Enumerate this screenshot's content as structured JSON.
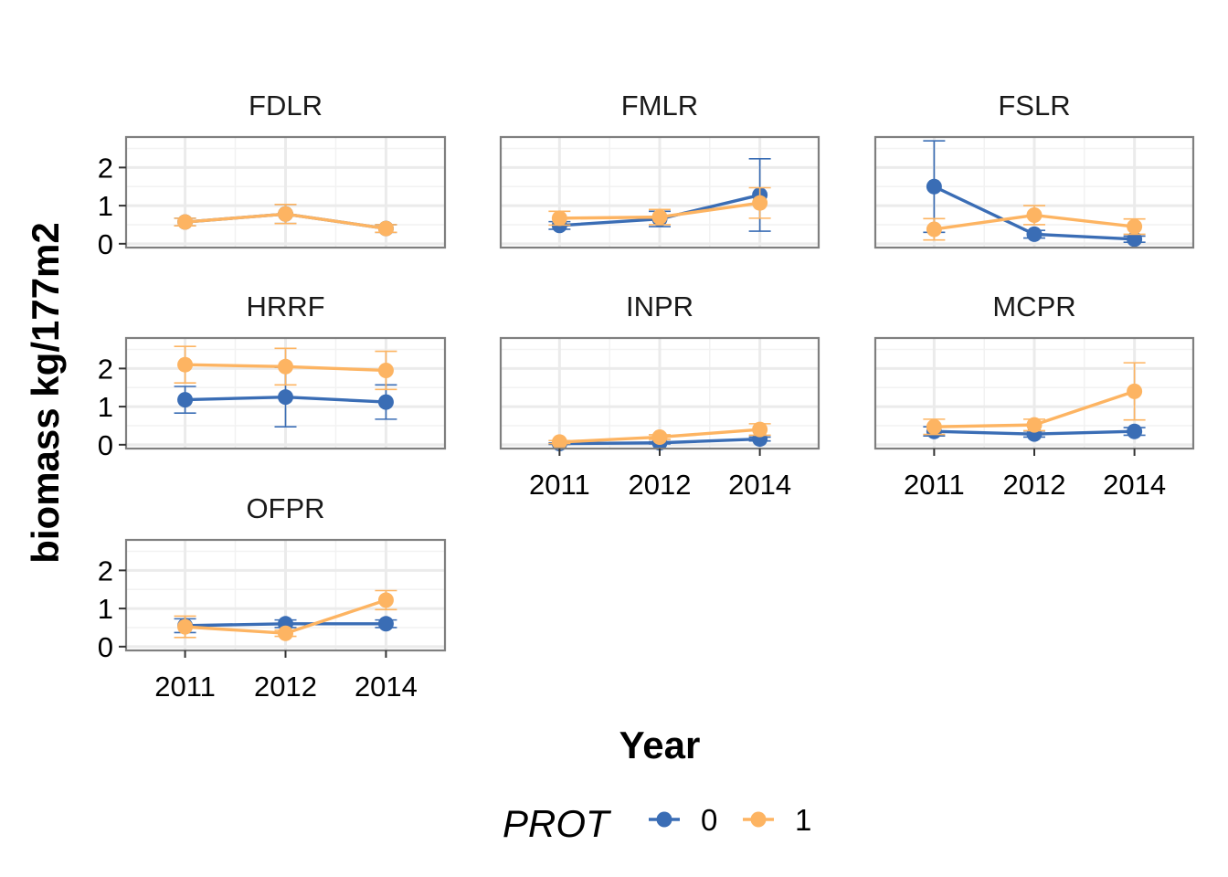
{
  "chart_data": {
    "type": "line",
    "xlabel": "Year",
    "ylabel": "biomass kg/177m2",
    "ylim": [
      -0.1,
      2.8
    ],
    "y_ticks": [
      0,
      1,
      2
    ],
    "x_categories": [
      "2011",
      "2012",
      "2014"
    ],
    "legend": {
      "title": "PROT",
      "placement": "bottom",
      "entries": [
        "0",
        "1"
      ]
    },
    "colors": {
      "0": "#3a6db5",
      "1": "#fdb462"
    },
    "panels": [
      {
        "site": "FDLR",
        "series": [
          {
            "name": "0",
            "values": [
              0.57,
              0.78,
              0.4
            ],
            "err": [
              0.1,
              0.25,
              0.1
            ]
          },
          {
            "name": "1",
            "values": [
              0.57,
              0.78,
              0.4
            ],
            "err": [
              0.1,
              0.25,
              0.1
            ]
          }
        ]
      },
      {
        "site": "FMLR",
        "series": [
          {
            "name": "0",
            "values": [
              0.48,
              0.65,
              1.28
            ],
            "err": [
              0.1,
              0.2,
              0.95
            ]
          },
          {
            "name": "1",
            "values": [
              0.67,
              0.7,
              1.07
            ],
            "err": [
              0.18,
              0.2,
              0.4
            ]
          }
        ]
      },
      {
        "site": "FSLR",
        "series": [
          {
            "name": "0",
            "values": [
              1.5,
              0.25,
              0.12
            ],
            "err": [
              1.2,
              0.1,
              0.08
            ]
          },
          {
            "name": "1",
            "values": [
              0.38,
              0.75,
              0.45
            ],
            "err": [
              0.28,
              0.25,
              0.2
            ]
          }
        ]
      },
      {
        "site": "HRRF",
        "series": [
          {
            "name": "0",
            "values": [
              1.18,
              1.25,
              1.12
            ],
            "err": [
              0.35,
              0.78,
              0.45
            ]
          },
          {
            "name": "1",
            "values": [
              2.1,
              2.05,
              1.95
            ],
            "err": [
              0.48,
              0.48,
              0.5
            ]
          }
        ]
      },
      {
        "site": "INPR",
        "series": [
          {
            "name": "0",
            "values": [
              0.03,
              0.05,
              0.15
            ],
            "err": [
              0.02,
              0.03,
              0.05
            ]
          },
          {
            "name": "1",
            "values": [
              0.07,
              0.2,
              0.4
            ],
            "err": [
              0.04,
              0.06,
              0.15
            ]
          }
        ]
      },
      {
        "site": "MCPR",
        "series": [
          {
            "name": "0",
            "values": [
              0.35,
              0.28,
              0.35
            ],
            "err": [
              0.12,
              0.08,
              0.1
            ]
          },
          {
            "name": "1",
            "values": [
              0.47,
              0.52,
              1.4
            ],
            "err": [
              0.2,
              0.15,
              0.75
            ]
          }
        ]
      },
      {
        "site": "OFPR",
        "series": [
          {
            "name": "0",
            "values": [
              0.55,
              0.6,
              0.6
            ],
            "err": [
              0.18,
              0.1,
              0.1
            ]
          },
          {
            "name": "1",
            "values": [
              0.52,
              0.35,
              1.22
            ],
            "err": [
              0.28,
              0.08,
              0.25
            ]
          }
        ]
      }
    ]
  }
}
